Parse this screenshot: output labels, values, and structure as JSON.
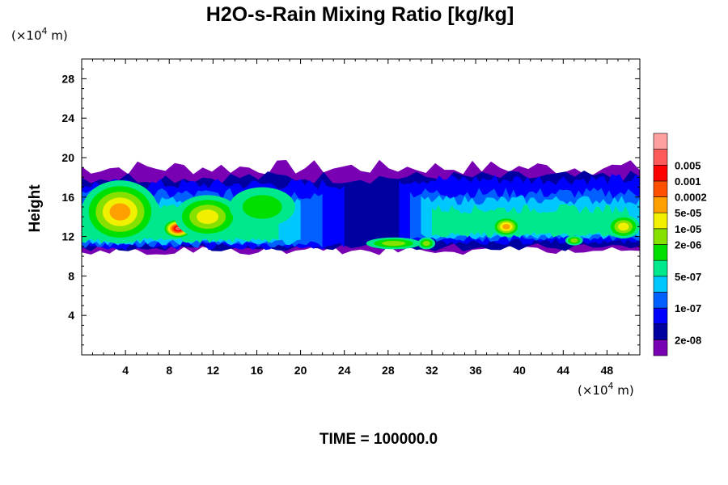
{
  "chart_data": {
    "type": "heatmap",
    "title": "H2O-s-Rain Mixing Ratio [kg/kg]",
    "ylabel": "Height",
    "x_unit": "(×10",
    "x_unit_exp": "4",
    "x_unit_tail": " m)",
    "y_unit": "(×10",
    "y_unit_exp": "4",
    "y_unit_tail": " m)",
    "xlim": [
      0,
      51
    ],
    "ylim": [
      0,
      30
    ],
    "x_ticks": [
      4,
      8,
      12,
      16,
      20,
      24,
      28,
      32,
      36,
      40,
      44,
      48
    ],
    "y_ticks": [
      4,
      8,
      12,
      16,
      20,
      24,
      28
    ],
    "time_label": "TIME = 100000.0",
    "colorbar": {
      "levels": [
        "2e-08",
        "1e-07",
        "5e-07",
        "2e-06",
        "1e-05",
        "5e-05",
        "0.0002",
        "0.001",
        "0.005"
      ],
      "colors": [
        "#7a00b4",
        "#0000a0",
        "#0000ff",
        "#0060ff",
        "#00c8ff",
        "#00e88c",
        "#00e000",
        "#86e000",
        "#f0f000",
        "#ffa000",
        "#ff5000",
        "#ff0000",
        "#ff5a5a",
        "#ffa0a0"
      ],
      "tick_layer_index": [
        1,
        3,
        5,
        7,
        8,
        9,
        10,
        11,
        12
      ]
    },
    "field": {
      "description_note": "",
      "core_layer_band_km_e4": [
        10.5,
        20
      ],
      "blobs": [
        {
          "x": 3.5,
          "y": 14.5,
          "rx": 3.5,
          "ry": 3.2,
          "layer": 9
        },
        {
          "x": 8.8,
          "y": 12.8,
          "rx": 1.4,
          "ry": 1.0,
          "layer": 12
        },
        {
          "x": 11.5,
          "y": 14.0,
          "rx": 3.0,
          "ry": 2.2,
          "layer": 8
        },
        {
          "x": 16.5,
          "y": 15.0,
          "rx": 3.0,
          "ry": 2.0,
          "layer": 6
        },
        {
          "x": 28.5,
          "y": 11.3,
          "rx": 2.5,
          "ry": 0.6,
          "layer": 7
        },
        {
          "x": 31.5,
          "y": 11.3,
          "rx": 0.8,
          "ry": 0.6,
          "layer": 7
        },
        {
          "x": 38.8,
          "y": 13.0,
          "rx": 1.3,
          "ry": 1.0,
          "layer": 9
        },
        {
          "x": 45.0,
          "y": 11.6,
          "rx": 0.8,
          "ry": 0.5,
          "layer": 7
        },
        {
          "x": 49.5,
          "y": 13.0,
          "rx": 1.5,
          "ry": 1.2,
          "layer": 8
        }
      ]
    }
  }
}
